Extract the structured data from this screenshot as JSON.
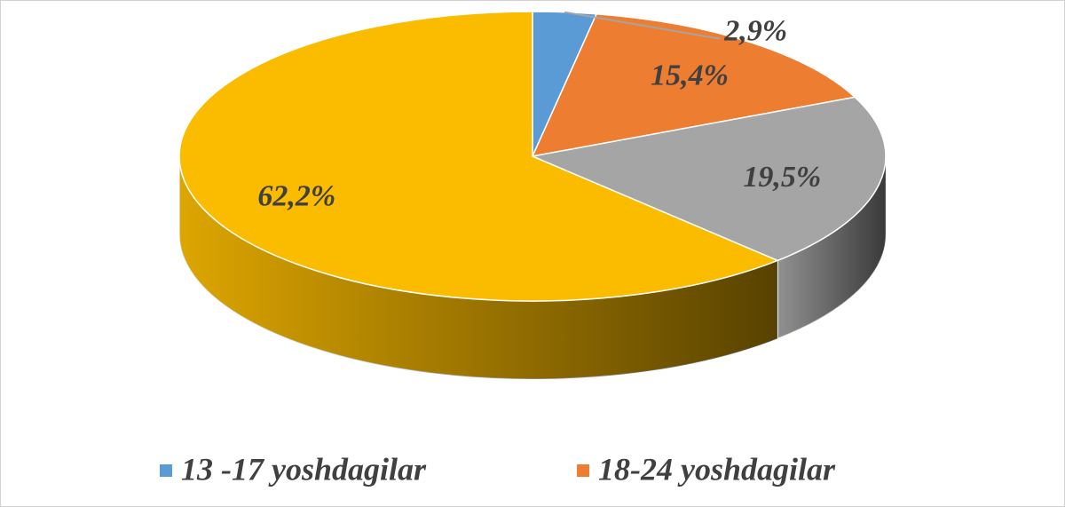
{
  "chart_data": {
    "type": "pie3d",
    "categories": [
      "13 -17 yoshdagilar",
      "18-24 yoshdagilar",
      null,
      null
    ],
    "values": [
      2.9,
      15.4,
      19.5,
      62.2
    ],
    "value_labels": [
      "2,9%",
      "15,4%",
      "19,5%",
      "62,2%"
    ],
    "colors": [
      "#5b9bd5",
      "#ed7d31",
      "#a5a5a5",
      "#fbbc00"
    ],
    "legend": "bottom"
  }
}
